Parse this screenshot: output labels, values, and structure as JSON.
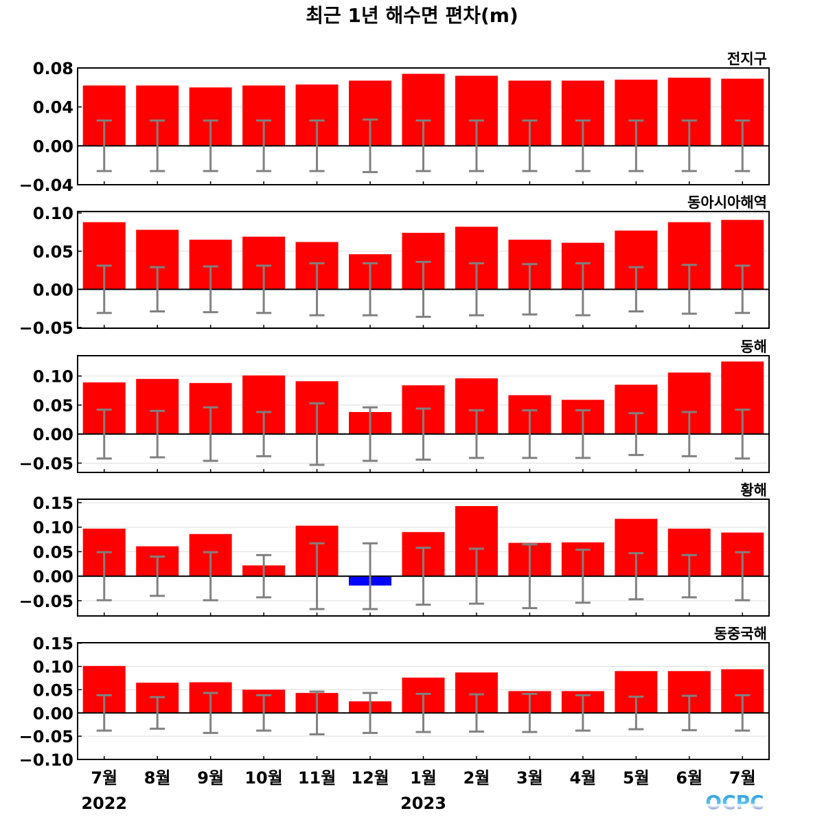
{
  "chart_data": {
    "type": "bar",
    "title": "최근 1년 해수면 편차(m)",
    "categories": [
      "7월",
      "8월",
      "9월",
      "10월",
      "11월",
      "12월",
      "1월",
      "2월",
      "3월",
      "4월",
      "5월",
      "6월",
      "7월"
    ],
    "year_labels": [
      {
        "label": "2022",
        "category_index": 0
      },
      {
        "label": "2023",
        "category_index": 6
      }
    ],
    "colors": {
      "positive": "#ff0000",
      "negative": "#0000ff",
      "error_bar": "#808080",
      "zero_line": "#000000",
      "grid": "#dddddd"
    },
    "grid": true,
    "logo": "OCPC",
    "panels": [
      {
        "region": "전지구",
        "ylim": [
          -0.04,
          0.08
        ],
        "yticks": [
          -0.04,
          0.0,
          0.04,
          0.08
        ],
        "tick_labels": [
          "−0.04",
          "0.00",
          "0.04",
          "0.08"
        ],
        "values": [
          0.062,
          0.062,
          0.06,
          0.062,
          0.063,
          0.067,
          0.074,
          0.072,
          0.067,
          0.067,
          0.068,
          0.07,
          0.069
        ],
        "error": [
          0.026,
          0.026,
          0.026,
          0.026,
          0.026,
          0.027,
          0.026,
          0.026,
          0.026,
          0.026,
          0.026,
          0.026,
          0.026
        ]
      },
      {
        "region": "동아시아해역",
        "ylim": [
          -0.051,
          0.102
        ],
        "yticks": [
          -0.05,
          0.0,
          0.05,
          0.1
        ],
        "tick_labels": [
          "−0.05",
          "0.00",
          "0.05",
          "0.10"
        ],
        "values": [
          0.088,
          0.078,
          0.065,
          0.069,
          0.062,
          0.046,
          0.074,
          0.082,
          0.065,
          0.061,
          0.077,
          0.088,
          0.091
        ],
        "error": [
          0.031,
          0.029,
          0.03,
          0.031,
          0.034,
          0.034,
          0.036,
          0.034,
          0.033,
          0.034,
          0.029,
          0.032,
          0.031
        ]
      },
      {
        "region": "동해",
        "ylim": [
          -0.066,
          0.135
        ],
        "yticks": [
          -0.05,
          0.0,
          0.05,
          0.1
        ],
        "tick_labels": [
          "−0.05",
          "0.00",
          "0.05",
          "0.10"
        ],
        "values": [
          0.089,
          0.095,
          0.088,
          0.101,
          0.091,
          0.038,
          0.084,
          0.096,
          0.067,
          0.059,
          0.085,
          0.106,
          0.125
        ],
        "error": [
          0.042,
          0.04,
          0.046,
          0.038,
          0.053,
          0.046,
          0.044,
          0.041,
          0.041,
          0.041,
          0.036,
          0.038,
          0.042
        ]
      },
      {
        "region": "황해",
        "ylim": [
          -0.081,
          0.157
        ],
        "yticks": [
          -0.05,
          0.0,
          0.05,
          0.1,
          0.15
        ],
        "tick_labels": [
          "−0.05",
          "0.00",
          "0.05",
          "0.10",
          "0.15"
        ],
        "values": [
          0.097,
          0.061,
          0.086,
          0.022,
          0.103,
          -0.019,
          0.09,
          0.143,
          0.068,
          0.069,
          0.117,
          0.097,
          0.089
        ],
        "error": [
          0.049,
          0.04,
          0.049,
          0.043,
          0.067,
          0.067,
          0.058,
          0.056,
          0.065,
          0.054,
          0.047,
          0.043,
          0.049
        ]
      },
      {
        "region": "동중국해",
        "ylim": [
          -0.1,
          0.151
        ],
        "yticks": [
          -0.1,
          -0.05,
          0.0,
          0.05,
          0.1,
          0.15
        ],
        "tick_labels": [
          "−0.10",
          "−0.05",
          "0.00",
          "0.05",
          "0.10",
          "0.15"
        ],
        "values": [
          0.101,
          0.065,
          0.066,
          0.05,
          0.043,
          0.025,
          0.076,
          0.087,
          0.047,
          0.047,
          0.09,
          0.09,
          0.094
        ],
        "error": [
          0.038,
          0.034,
          0.043,
          0.038,
          0.046,
          0.043,
          0.041,
          0.04,
          0.041,
          0.038,
          0.035,
          0.037,
          0.038
        ]
      }
    ]
  }
}
